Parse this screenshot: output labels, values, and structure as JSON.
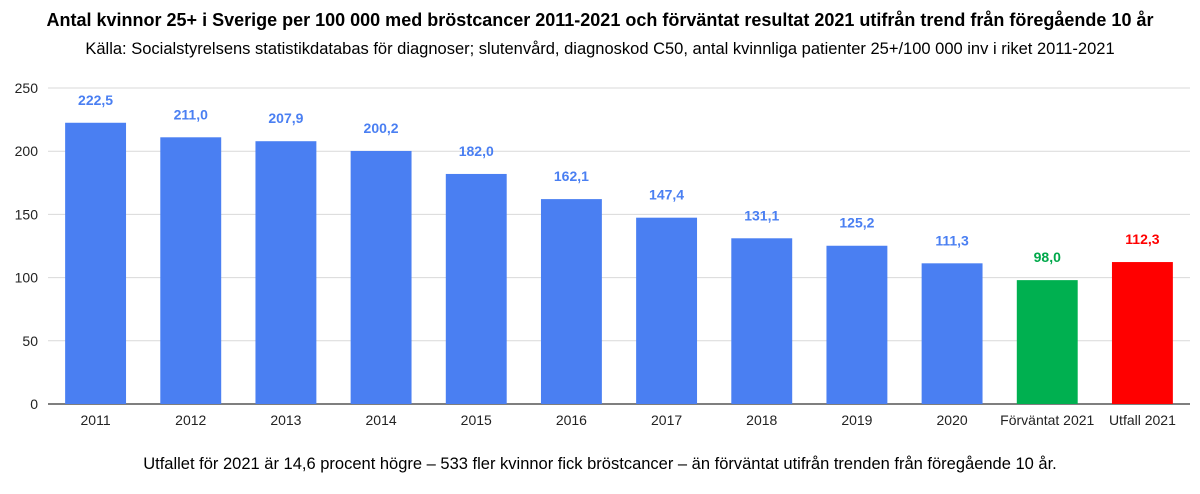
{
  "title": "Antal kvinnor 25+ i Sverige per 100 000 med bröstcancer 2011-2021 och förväntat resultat 2021 utifrån trend från föregående 10 år",
  "subtitle": "Källa: Socialstyrelsens statistikdatabas för diagnoser; slutenvård, diagnoskod C50, antal kvinnliga patienter 25+/100 000 inv i riket 2011-2021",
  "footnote": "Utfallet för 2021 är 14,6 procent högre – 533 fler kvinnor fick bröstcancer – än förväntat utifrån trenden från föregående 10 år.",
  "chart_data": {
    "type": "bar",
    "title": "Antal kvinnor 25+ i Sverige per 100 000 med bröstcancer 2011-2021 och förväntat resultat 2021 utifrån trend från föregående 10 år",
    "subtitle": "Källa: Socialstyrelsens statistikdatabas för diagnoser; slutenvård, diagnoskod C50, antal kvinnliga patienter 25+/100 000 inv i riket 2011-2021",
    "xlabel": "",
    "ylabel": "",
    "ylim": [
      0,
      250
    ],
    "yticks": [
      "0",
      "50",
      "100",
      "150",
      "200",
      "250"
    ],
    "yticks_values": [
      0,
      50,
      100,
      150,
      200,
      250
    ],
    "grid": true,
    "legend": "none",
    "categories": [
      "2011",
      "2012",
      "2013",
      "2014",
      "2015",
      "2016",
      "2017",
      "2018",
      "2019",
      "2020",
      "Förväntat 2021",
      "Utfall 2021"
    ],
    "values": [
      222.5,
      211.0,
      207.9,
      200.2,
      182.0,
      162.1,
      147.4,
      131.1,
      125.2,
      111.3,
      98.0,
      112.3
    ],
    "data_labels": [
      "222,5",
      "211,0",
      "207,9",
      "200,2",
      "182,0",
      "162,1",
      "147,4",
      "131,1",
      "125,2",
      "111,3",
      "98,0",
      "112,3"
    ],
    "bar_colors": [
      "#4a7ff2",
      "#4a7ff2",
      "#4a7ff2",
      "#4a7ff2",
      "#4a7ff2",
      "#4a7ff2",
      "#4a7ff2",
      "#4a7ff2",
      "#4a7ff2",
      "#4a7ff2",
      "#00b050",
      "#ff0000"
    ],
    "label_colors": [
      "#4a7ff2",
      "#4a7ff2",
      "#4a7ff2",
      "#4a7ff2",
      "#4a7ff2",
      "#4a7ff2",
      "#4a7ff2",
      "#4a7ff2",
      "#4a7ff2",
      "#4a7ff2",
      "#00a84a",
      "#ff0000"
    ],
    "grid_color": "#d9d9d9",
    "axis_color": "#333333"
  }
}
